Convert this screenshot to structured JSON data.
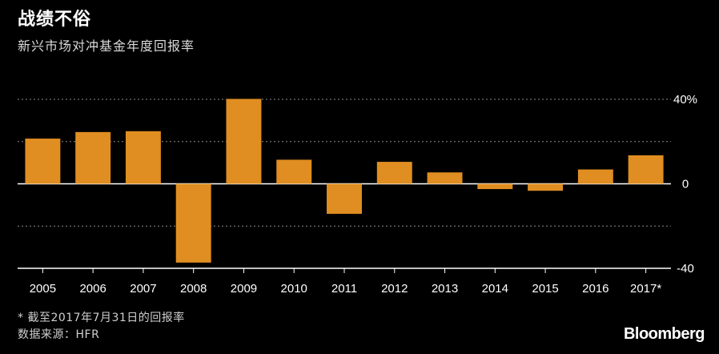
{
  "header": {
    "title": "战绩不俗",
    "subtitle": "新兴市场对冲基金年度回报率"
  },
  "footer": {
    "footnote": "* 截至2017年7月31日的回报率",
    "source": "数据来源：HFR",
    "brand": "Bloomberg"
  },
  "colors": {
    "bar": "#e08e21",
    "gridline": "#8c8c8c",
    "axis": "#ffffff",
    "background": "#000000"
  },
  "chart_data": {
    "type": "bar",
    "categories": [
      "2005",
      "2006",
      "2007",
      "2008",
      "2009",
      "2010",
      "2011",
      "2012",
      "2013",
      "2014",
      "2015",
      "2016",
      "2017*"
    ],
    "values": [
      21.4,
      24.5,
      24.9,
      -37.3,
      40.2,
      11.4,
      -14.2,
      10.4,
      5.4,
      -2.5,
      -3.3,
      6.8,
      13.5
    ],
    "title": "战绩不俗",
    "subtitle": "新兴市场对冲基金年度回报率",
    "ylim": [
      -40,
      40
    ],
    "yticks": [
      40,
      20,
      0,
      -20,
      -40
    ],
    "ytick_labels": [
      "40%",
      "",
      "0",
      "",
      "-40"
    ],
    "grid": true,
    "y_axis_position": "right"
  }
}
